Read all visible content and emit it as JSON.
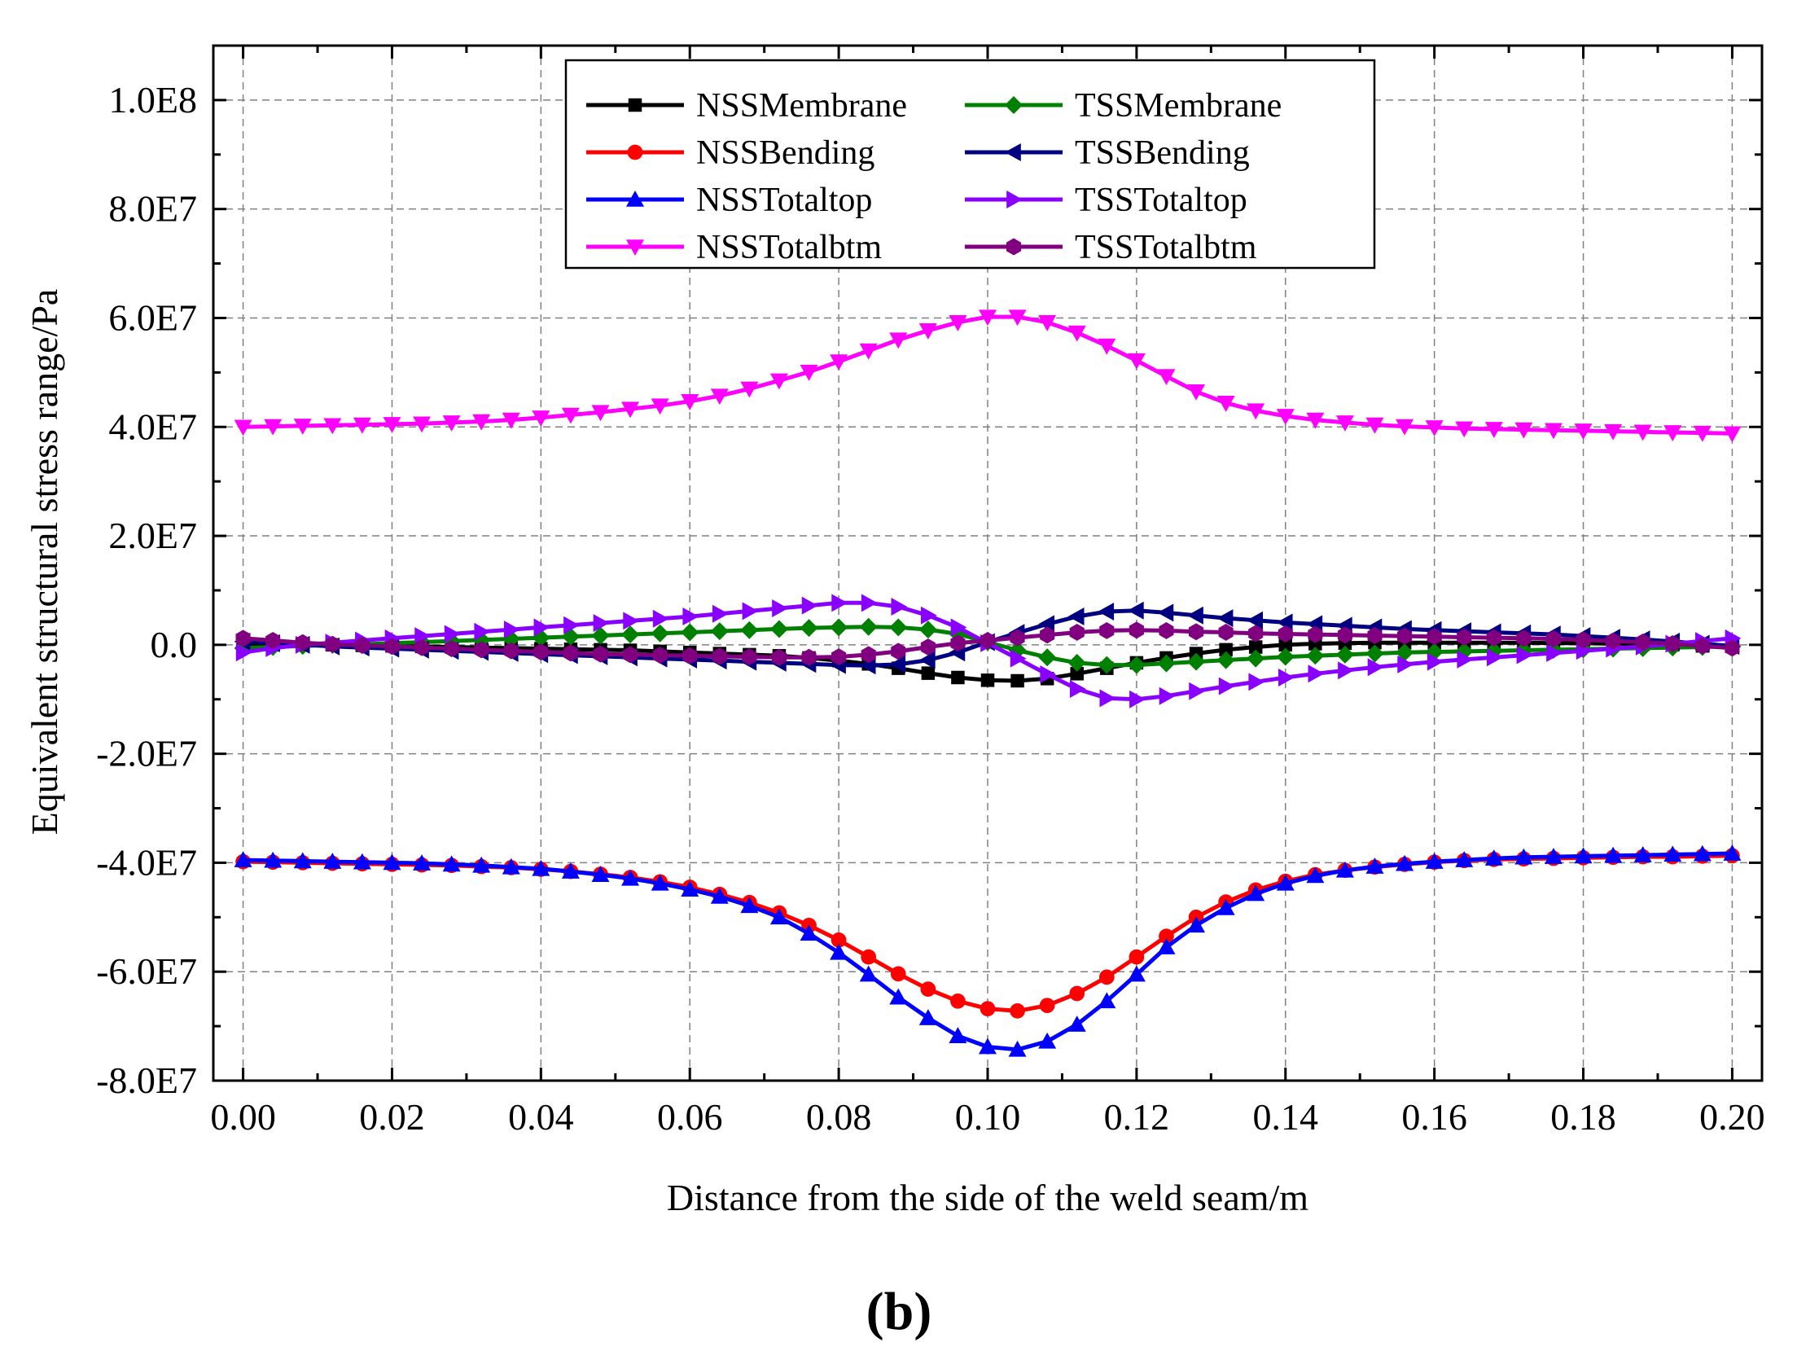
{
  "chart_data": {
    "type": "line",
    "title": "",
    "panel_label": "(b)",
    "xlabel": "Distance from the side of the weld seam/m",
    "ylabel": "Equivalent structural stress range/Pa",
    "xlim": [
      -0.004,
      0.204
    ],
    "ylim": [
      -80000000,
      110000000
    ],
    "grid": true,
    "legend_position": "top-center",
    "x_ticks": [
      0.0,
      0.02,
      0.04,
      0.06,
      0.08,
      0.1,
      0.12,
      0.14,
      0.16,
      0.18,
      0.2
    ],
    "x_tick_labels": [
      "0.00",
      "0.02",
      "0.04",
      "0.06",
      "0.08",
      "0.10",
      "0.12",
      "0.14",
      "0.16",
      "0.18",
      "0.20"
    ],
    "y_ticks": [
      -80000000,
      -60000000,
      -40000000,
      -20000000,
      0,
      20000000,
      40000000,
      60000000,
      80000000,
      100000000
    ],
    "y_tick_labels": [
      "-8.0E7",
      "-6.0E7",
      "-4.0E7",
      "-2.0E7",
      "0.0",
      "2.0E7",
      "4.0E7",
      "6.0E7",
      "8.0E7",
      "1.0E8"
    ],
    "x": [
      0.0,
      0.004,
      0.008,
      0.012,
      0.016,
      0.02,
      0.024,
      0.028,
      0.032,
      0.036,
      0.04,
      0.044,
      0.048,
      0.052,
      0.056,
      0.06,
      0.064,
      0.068,
      0.072,
      0.076,
      0.08,
      0.084,
      0.088,
      0.092,
      0.096,
      0.1,
      0.104,
      0.108,
      0.112,
      0.116,
      0.12,
      0.124,
      0.128,
      0.132,
      0.136,
      0.14,
      0.144,
      0.148,
      0.152,
      0.156,
      0.16,
      0.164,
      0.168,
      0.172,
      0.176,
      0.18,
      0.184,
      0.188,
      0.192,
      0.196,
      0.2
    ],
    "series": [
      {
        "name": "NSSMembrane",
        "color": "#000000",
        "marker": "square",
        "values": [
          0,
          0,
          0,
          0,
          -100000,
          -200000,
          -300000,
          -400000,
          -500000,
          -600000,
          -700000,
          -800000,
          -900000,
          -1000000,
          -1200000,
          -1400000,
          -1600000,
          -1800000,
          -2000000,
          -2400000,
          -2900000,
          -3500000,
          -4300000,
          -5200000,
          -6000000,
          -6500000,
          -6600000,
          -6200000,
          -5300000,
          -4300000,
          -3300000,
          -2400000,
          -1600000,
          -900000,
          -400000,
          0,
          200000,
          300000,
          400000,
          400000,
          400000,
          400000,
          400000,
          400000,
          300000,
          300000,
          200000,
          100000,
          0,
          -200000,
          -300000
        ]
      },
      {
        "name": "NSSBending",
        "color": "#ff0000",
        "marker": "circle",
        "values": [
          -39800000,
          -39900000,
          -40000000,
          -40100000,
          -40200000,
          -40300000,
          -40400000,
          -40500000,
          -40700000,
          -40900000,
          -41200000,
          -41600000,
          -42100000,
          -42700000,
          -43500000,
          -44500000,
          -45800000,
          -47300000,
          -49200000,
          -51500000,
          -54200000,
          -57300000,
          -60400000,
          -63200000,
          -65400000,
          -66800000,
          -67200000,
          -66200000,
          -64000000,
          -61000000,
          -57300000,
          -53500000,
          -50000000,
          -47200000,
          -45000000,
          -43400000,
          -42200000,
          -41400000,
          -40800000,
          -40300000,
          -39900000,
          -39600000,
          -39400000,
          -39300000,
          -39200000,
          -39100000,
          -39000000,
          -38900000,
          -38900000,
          -38800000,
          -38700000
        ]
      },
      {
        "name": "NSSTotaltop",
        "color": "#0000ff",
        "marker": "triangle-up",
        "values": [
          -39500000,
          -39600000,
          -39700000,
          -39800000,
          -39900000,
          -40000000,
          -40100000,
          -40300000,
          -40500000,
          -40800000,
          -41100000,
          -41600000,
          -42200000,
          -42900000,
          -43800000,
          -44900000,
          -46200000,
          -47900000,
          -50000000,
          -53000000,
          -56500000,
          -60500000,
          -64700000,
          -68500000,
          -71800000,
          -73800000,
          -74300000,
          -72800000,
          -69700000,
          -65400000,
          -60500000,
          -55500000,
          -51500000,
          -48300000,
          -45700000,
          -43800000,
          -42400000,
          -41400000,
          -40700000,
          -40200000,
          -39800000,
          -39500000,
          -39200000,
          -39000000,
          -38900000,
          -38800000,
          -38700000,
          -38600000,
          -38500000,
          -38400000,
          -38300000
        ]
      },
      {
        "name": "NSSTotalbtm",
        "color": "#ff00ff",
        "marker": "triangle-down",
        "values": [
          40000000,
          40100000,
          40200000,
          40300000,
          40400000,
          40500000,
          40600000,
          40800000,
          41000000,
          41300000,
          41700000,
          42200000,
          42700000,
          43300000,
          43900000,
          44700000,
          45700000,
          47000000,
          48500000,
          50100000,
          52000000,
          54000000,
          56000000,
          57700000,
          59200000,
          60200000,
          60200000,
          59200000,
          57300000,
          54900000,
          52200000,
          49300000,
          46500000,
          44400000,
          43000000,
          42000000,
          41300000,
          40800000,
          40400000,
          40100000,
          39900000,
          39700000,
          39600000,
          39500000,
          39400000,
          39300000,
          39200000,
          39100000,
          39000000,
          38900000,
          38800000
        ]
      },
      {
        "name": "TSSMembrane",
        "color": "#008000",
        "marker": "diamond",
        "values": [
          -600000,
          -400000,
          -200000,
          0,
          100000,
          300000,
          500000,
          700000,
          900000,
          1100000,
          1300000,
          1500000,
          1700000,
          1900000,
          2100000,
          2300000,
          2500000,
          2700000,
          2900000,
          3100000,
          3200000,
          3300000,
          3200000,
          2800000,
          2000000,
          500000,
          -1000000,
          -2300000,
          -3300000,
          -3700000,
          -3700000,
          -3400000,
          -3100000,
          -2800000,
          -2500000,
          -2200000,
          -2000000,
          -1800000,
          -1600000,
          -1400000,
          -1300000,
          -1200000,
          -1100000,
          -1000000,
          -900000,
          -800000,
          -700000,
          -600000,
          -500000,
          -400000,
          -300000
        ]
      },
      {
        "name": "TSSBending",
        "color": "#000080",
        "marker": "triangle-left",
        "values": [
          600000,
          300000,
          0,
          -300000,
          -500000,
          -700000,
          -900000,
          -1100000,
          -1300000,
          -1500000,
          -1700000,
          -1900000,
          -2100000,
          -2300000,
          -2500000,
          -2700000,
          -2900000,
          -3100000,
          -3300000,
          -3500000,
          -3700000,
          -3800000,
          -3600000,
          -2800000,
          -1400000,
          500000,
          2200000,
          3800000,
          5200000,
          6100000,
          6300000,
          5900000,
          5400000,
          4900000,
          4500000,
          4100000,
          3800000,
          3500000,
          3200000,
          2900000,
          2700000,
          2500000,
          2300000,
          2100000,
          1900000,
          1600000,
          1300000,
          1000000,
          600000,
          200000,
          -200000
        ]
      },
      {
        "name": "TSSTotaltop",
        "color": "#8a00ff",
        "marker": "triangle-right",
        "values": [
          -1400000,
          -600000,
          0,
          400000,
          800000,
          1200000,
          1600000,
          2000000,
          2400000,
          2800000,
          3200000,
          3600000,
          4000000,
          4400000,
          4800000,
          5200000,
          5700000,
          6200000,
          6700000,
          7200000,
          7700000,
          7700000,
          7000000,
          5400000,
          3200000,
          300000,
          -2500000,
          -5400000,
          -8100000,
          -9800000,
          -10000000,
          -9400000,
          -8500000,
          -7600000,
          -6800000,
          -6000000,
          -5300000,
          -4700000,
          -4100000,
          -3600000,
          -3100000,
          -2700000,
          -2300000,
          -1900000,
          -1500000,
          -1100000,
          -700000,
          -300000,
          200000,
          700000,
          1200000
        ]
      },
      {
        "name": "TSSTotalbtm",
        "color": "#800080",
        "marker": "hexagon",
        "values": [
          1200000,
          800000,
          400000,
          100000,
          -100000,
          -300000,
          -500000,
          -700000,
          -900000,
          -1100000,
          -1300000,
          -1500000,
          -1700000,
          -1800000,
          -1900000,
          -2000000,
          -2100000,
          -2200000,
          -2300000,
          -2300000,
          -2200000,
          -1800000,
          -1200000,
          -400000,
          300000,
          800000,
          1300000,
          1800000,
          2300000,
          2600000,
          2700000,
          2600000,
          2400000,
          2300000,
          2100000,
          2000000,
          1900000,
          1800000,
          1700000,
          1600000,
          1500000,
          1400000,
          1300000,
          1200000,
          1100000,
          900000,
          700000,
          500000,
          200000,
          -200000,
          -600000
        ]
      }
    ]
  }
}
